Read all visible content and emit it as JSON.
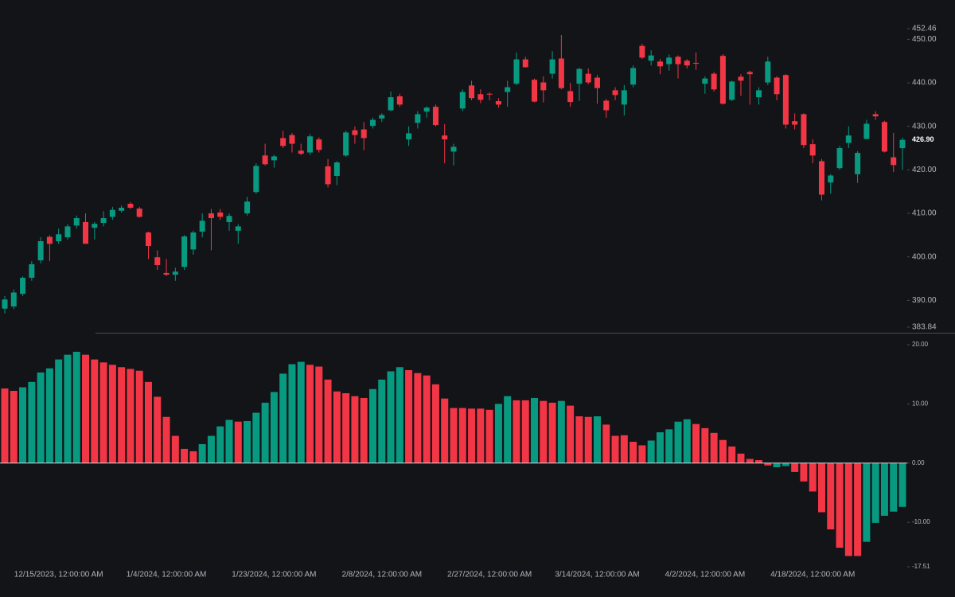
{
  "chart_data": [
    {
      "type": "candlestick",
      "up_color": "#089981",
      "down_color": "#f23645",
      "open": [
        388.1,
        388.6,
        391.5,
        395.2,
        399.2,
        404.6,
        403.6,
        404.5,
        407.2,
        408,
        406.7,
        407.8,
        409.2,
        410.6,
        412.2,
        411.1,
        405.6,
        399.9,
        396.3,
        395.9,
        397.7,
        401.7,
        405.8,
        410,
        410.2,
        408,
        406,
        410,
        414.9,
        423.3,
        422.2,
        427.3,
        428,
        424.4,
        424,
        427,
        420.8,
        418.6,
        423.3,
        429.1,
        429.3,
        430.1,
        431.8,
        433.7,
        436.9,
        427,
        430.8,
        433.4,
        434.5,
        427.9,
        424.2,
        434.1,
        439.4,
        437.4,
        437.5,
        435.8,
        437.9,
        439.8,
        445.4,
        440.7,
        440.1,
        442.1,
        445.6,
        438.1,
        439.8,
        442.1,
        441.2,
        435.9,
        438.3,
        435,
        439.6,
        448.5,
        445.1,
        444.9,
        444.3,
        446,
        445.1,
        444.6,
        439.8,
        442.1,
        446.2,
        436.1,
        441.4,
        442.5,
        436.7,
        440.1,
        441.2,
        441.8,
        431.2,
        432.8,
        425.9,
        422,
        417.1,
        420.4,
        426.2,
        419,
        427.1,
        432.8,
        431,
        422.9,
        425
      ],
      "high": [
        391,
        392.5,
        395.5,
        399,
        404.5,
        405,
        406.5,
        407.5,
        409.5,
        410,
        408,
        410.5,
        411.5,
        411.8,
        412.6,
        411.5,
        405.8,
        401.5,
        399.5,
        397.5,
        405,
        406,
        410,
        411,
        411,
        410,
        407.5,
        413.8,
        421.5,
        426,
        423.5,
        429,
        428.5,
        426,
        428.2,
        427.5,
        422.5,
        422,
        429,
        430,
        431,
        432,
        433,
        438,
        437.5,
        430,
        433.5,
        434.6,
        435,
        430.5,
        426,
        438.5,
        440.5,
        438.5,
        437.8,
        436.5,
        440.5,
        447,
        446,
        441,
        441.5,
        447.3,
        451,
        440,
        443.5,
        443.3,
        441.8,
        436.3,
        439,
        439.5,
        444,
        449,
        447.5,
        445.5,
        446.5,
        446.3,
        445.5,
        447,
        441.5,
        442.5,
        446.6,
        440.5,
        442,
        442.8,
        439,
        446,
        441.5,
        442,
        433,
        433,
        427,
        422.5,
        419,
        425.5,
        430,
        424.3,
        431.5,
        433.5,
        431.3,
        428.5,
        427.4
      ],
      "low": [
        387,
        388,
        391,
        394.5,
        398.5,
        399,
        403,
        404,
        406.5,
        403,
        404,
        407,
        408.5,
        410.2,
        411,
        409,
        399.5,
        397,
        395.6,
        394.5,
        397,
        400.5,
        404.5,
        401.5,
        408.5,
        406,
        403,
        409.5,
        414.5,
        421,
        420.5,
        425,
        424,
        423.4,
        423.5,
        424,
        416,
        416.5,
        423,
        426,
        424.5,
        429.5,
        431,
        433.5,
        434.5,
        425.5,
        429.5,
        432,
        430,
        421.5,
        421,
        433.5,
        436,
        435.3,
        436,
        434.3,
        434.5,
        439.5,
        443.5,
        435.5,
        435.5,
        441,
        438.5,
        434.5,
        435.8,
        439.7,
        435.2,
        432,
        436,
        432.5,
        439,
        445.5,
        444,
        442,
        442.8,
        441,
        443.3,
        443,
        437.5,
        438,
        435,
        435.8,
        437,
        435,
        435,
        439.5,
        436,
        429.5,
        429.3,
        425,
        421.5,
        413,
        414.5,
        420,
        425,
        417,
        427,
        431.5,
        424,
        419.5,
        420
      ],
      "close": [
        390.2,
        391.8,
        395.2,
        398.3,
        403.6,
        403,
        405.2,
        407,
        408.9,
        403,
        407.6,
        408.9,
        410.8,
        411.3,
        411.3,
        409.2,
        402.5,
        398.1,
        395.9,
        396.6,
        404.7,
        405.6,
        408.3,
        408.9,
        409.2,
        409.4,
        407,
        412.7,
        420.9,
        421.3,
        423.1,
        425.5,
        426,
        423.7,
        427.7,
        424.6,
        416.7,
        421.7,
        428.6,
        428,
        427.3,
        431.5,
        432.6,
        436.7,
        435,
        428.4,
        432.8,
        434.3,
        430.3,
        427,
        425.3,
        437.9,
        436.5,
        436.1,
        437.3,
        435,
        439,
        445.4,
        443.6,
        435.7,
        438.3,
        445.4,
        438.8,
        435.6,
        443.2,
        440.1,
        438.8,
        433.7,
        437.2,
        438.3,
        443.4,
        445.8,
        446.3,
        443.8,
        445.8,
        444.3,
        444,
        444.4,
        441,
        438.5,
        435.2,
        440.3,
        440.5,
        442,
        438.3,
        444.9,
        437.4,
        430.4,
        430.4,
        425.7,
        423.3,
        414.3,
        418.7,
        425,
        427.9,
        423.9,
        430.6,
        432.3,
        424.2,
        421.1,
        426.9
      ],
      "last_value_label": "426.90",
      "ylim": [
        383.84,
        452.46
      ],
      "yticks": [
        452.46,
        {
          "value": 450,
          "label": "450.00"
        },
        {
          "value": 440,
          "label": "440.00"
        },
        {
          "value": 430,
          "label": "430.00"
        },
        {
          "value": 420,
          "label": "420.00"
        },
        {
          "value": 410,
          "label": "410.00"
        },
        {
          "value": 400,
          "label": "400.00"
        },
        {
          "value": 390,
          "label": "390.00"
        },
        383.84
      ],
      "xticks": [
        {
          "value": 6,
          "label": "12/15/2023, 12:00:00 AM"
        },
        {
          "value": 18,
          "label": "1/4/2024, 12:00:00 AM"
        },
        {
          "value": 30,
          "label": "1/23/2024, 12:00:00 AM"
        },
        {
          "value": 42,
          "label": "2/8/2024, 12:00:00 AM"
        },
        {
          "value": 54,
          "label": "2/27/2024, 12:00:00 AM"
        },
        {
          "value": 66,
          "label": "3/14/2024, 12:00:00 AM"
        },
        {
          "value": 78,
          "label": "4/2/2024, 12:00:00 AM"
        },
        {
          "value": 90,
          "label": "4/18/2024, 12:00:00 AM"
        }
      ]
    },
    {
      "type": "bar",
      "values": [
        12.6,
        12.2,
        12.8,
        13.7,
        15.3,
        16.0,
        17.5,
        18.3,
        18.8,
        18.3,
        17.5,
        17.0,
        16.6,
        16.2,
        15.9,
        15.6,
        13.7,
        11.2,
        7.8,
        4.6,
        2.4,
        2.0,
        3.2,
        4.6,
        6.2,
        7.3,
        7.0,
        7.1,
        8.5,
        10.2,
        12.0,
        15.1,
        16.7,
        17.1,
        16.6,
        16.3,
        14.1,
        12.1,
        11.8,
        11.3,
        11.0,
        12.5,
        14.1,
        15.5,
        16.2,
        15.7,
        15.2,
        14.8,
        13.3,
        10.9,
        9.3,
        9.3,
        9.2,
        9.2,
        9.0,
        10.0,
        11.3,
        10.6,
        10.6,
        11.0,
        10.5,
        10.2,
        10.5,
        9.7,
        7.9,
        7.8,
        7.9,
        6.5,
        4.6,
        4.7,
        3.6,
        3.0,
        3.8,
        5.2,
        5.7,
        7.0,
        7.4,
        6.6,
        5.9,
        5.1,
        3.9,
        2.8,
        1.6,
        0.7,
        0.5,
        -0.4,
        -0.7,
        -0.5,
        -1.5,
        -3.1,
        -4.8,
        -8.3,
        -11.2,
        -14.3,
        -15.7,
        -15.7,
        -13.3,
        -10.1,
        -8.9,
        -8.2,
        -7.4
      ],
      "colors": [
        "#f23645",
        "#f23645",
        "#089981",
        "#089981",
        "#089981",
        "#089981",
        "#089981",
        "#089981",
        "#089981",
        "#f23645",
        "#f23645",
        "#f23645",
        "#f23645",
        "#f23645",
        "#f23645",
        "#f23645",
        "#f23645",
        "#f23645",
        "#f23645",
        "#f23645",
        "#f23645",
        "#f23645",
        "#089981",
        "#089981",
        "#089981",
        "#089981",
        "#f23645",
        "#089981",
        "#089981",
        "#089981",
        "#089981",
        "#089981",
        "#089981",
        "#089981",
        "#f23645",
        "#f23645",
        "#f23645",
        "#f23645",
        "#f23645",
        "#f23645",
        "#f23645",
        "#089981",
        "#089981",
        "#089981",
        "#089981",
        "#f23645",
        "#f23645",
        "#f23645",
        "#f23645",
        "#f23645",
        "#f23645",
        "#f23645",
        "#f23645",
        "#f23645",
        "#f23645",
        "#089981",
        "#089981",
        "#f23645",
        "#f23645",
        "#089981",
        "#f23645",
        "#f23645",
        "#089981",
        "#f23645",
        "#f23645",
        "#f23645",
        "#089981",
        "#f23645",
        "#f23645",
        "#f23645",
        "#f23645",
        "#f23645",
        "#089981",
        "#089981",
        "#089981",
        "#089981",
        "#089981",
        "#f23645",
        "#f23645",
        "#f23645",
        "#f23645",
        "#f23645",
        "#f23645",
        "#f23645",
        "#f23645",
        "#f23645",
        "#089981",
        "#089981",
        "#f23645",
        "#f23645",
        "#f23645",
        "#f23645",
        "#f23645",
        "#f23645",
        "#f23645",
        "#f23645",
        "#089981",
        "#089981",
        "#089981",
        "#089981",
        "#089981"
      ],
      "zero_line": true,
      "ylim": [
        -17.51,
        20
      ],
      "yticks": [
        {
          "value": 20,
          "label": "20.00"
        },
        {
          "value": 10,
          "label": "10.00"
        },
        {
          "value": 0,
          "label": "0.00"
        },
        {
          "value": -10,
          "label": "-10.00"
        },
        -17.51
      ]
    }
  ]
}
